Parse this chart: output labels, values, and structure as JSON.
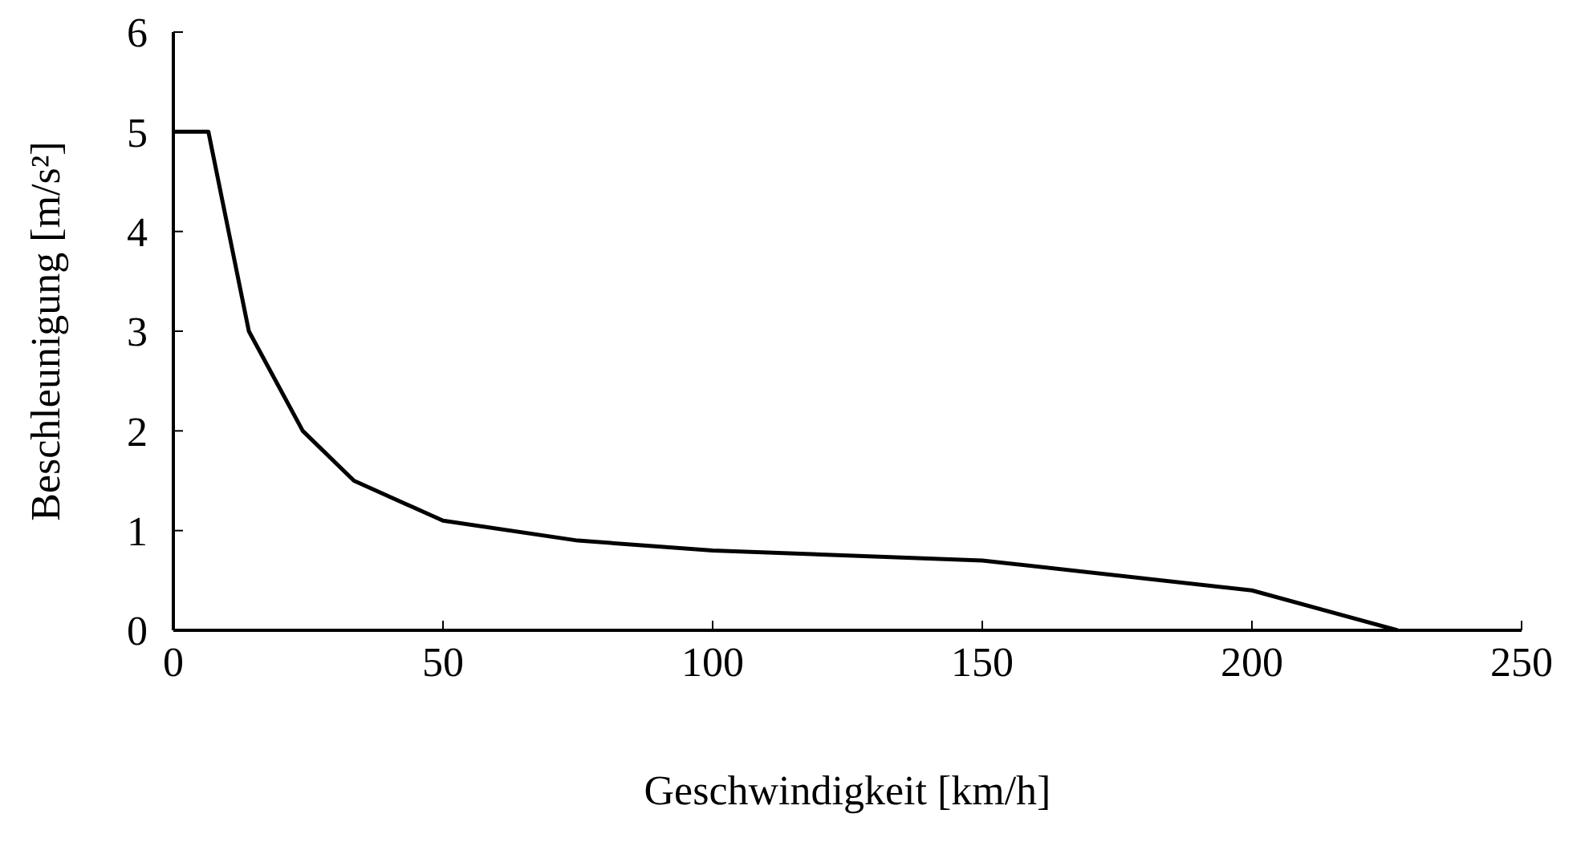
{
  "chart_data": {
    "type": "line",
    "xlabel": "Geschwindigkeit [km/h]",
    "ylabel": "Beschleunigung [m/s²]",
    "x": [
      0,
      6.5,
      14,
      24,
      33.5,
      50,
      75,
      100,
      150,
      200,
      227
    ],
    "series": [
      {
        "color": "#000000",
        "values": [
          5,
          5,
          3,
          2,
          1.5,
          1.1,
          0.9,
          0.8,
          0.7,
          0.4,
          0
        ]
      }
    ],
    "xlim": [
      0,
      250
    ],
    "xticks": [
      0,
      50,
      100,
      150,
      200,
      250
    ],
    "ylim": [
      0,
      6
    ],
    "yticks": [
      0,
      1,
      2,
      3,
      4,
      5,
      6
    ],
    "grid": false,
    "legend": false,
    "marker": "none",
    "line_style": "solid"
  }
}
